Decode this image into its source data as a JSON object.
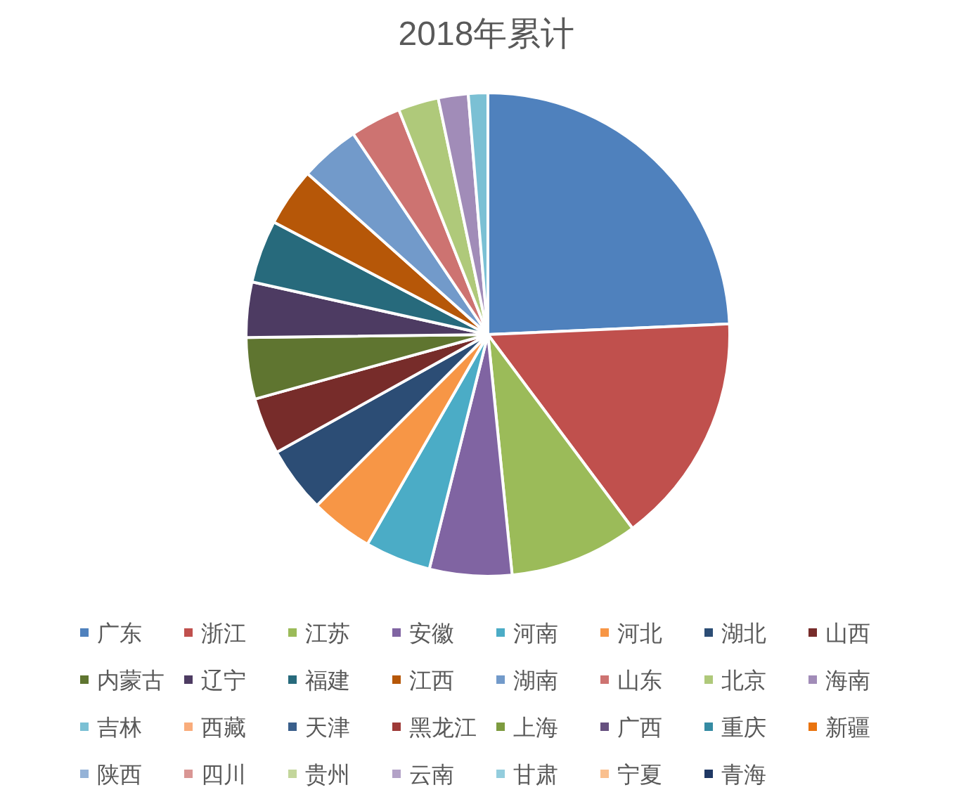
{
  "chart_data": {
    "type": "pie",
    "title": "2018年累计",
    "legend": "bottom",
    "categories": [
      "广东",
      "浙江",
      "江苏",
      "安徽",
      "河南",
      "河北",
      "湖北",
      "山西",
      "内蒙古",
      "辽宁",
      "福建",
      "江西",
      "湖南",
      "山东",
      "北京",
      "海南",
      "吉林",
      "西藏",
      "天津",
      "黑龙江",
      "上海",
      "广西",
      "重庆",
      "新疆",
      "陕西",
      "四川",
      "贵州",
      "云南",
      "甘肃",
      "宁夏",
      "青海"
    ],
    "values": [
      24.3,
      15.5,
      8.6,
      5.5,
      4.4,
      4.2,
      4.4,
      3.8,
      4.1,
      3.7,
      4.2,
      3.9,
      4.0,
      3.4,
      2.7,
      2.0,
      1.3,
      0,
      0,
      0,
      0,
      0,
      0,
      0,
      0,
      0,
      0,
      0,
      0,
      0,
      0
    ],
    "colors": [
      "#4f81bd",
      "#c0504d",
      "#9bbb59",
      "#8064a2",
      "#4bacc6",
      "#f79646",
      "#2c4d75",
      "#772c2a",
      "#5f7530",
      "#4d3b62",
      "#276a7c",
      "#b65708",
      "#729aca",
      "#cd7371",
      "#afc97a",
      "#a18cb8",
      "#7bc0d4",
      "#f9ac7b",
      "#3a5f8b",
      "#9e3a38",
      "#7d9b3f",
      "#66507f",
      "#358ba3",
      "#e9730e",
      "#95b3d7",
      "#d99694",
      "#c3d69b",
      "#b3a2c7",
      "#93cddd",
      "#fac08f",
      "#1f3864"
    ]
  }
}
